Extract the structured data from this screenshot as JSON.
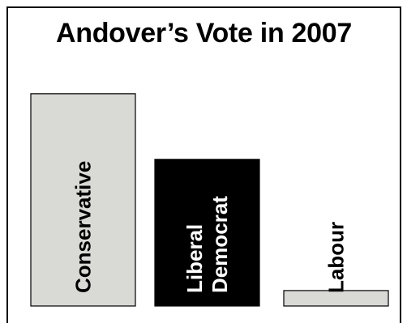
{
  "chart_data": {
    "type": "bar",
    "title": "Andover’s Vote in 2007",
    "categories": [
      "Conservative",
      "Liberal Democrat",
      "Labour"
    ],
    "label_lines": [
      [
        "Conservative"
      ],
      [
        "Liberal",
        "Democrat"
      ],
      [
        "Labour"
      ]
    ],
    "values": [
      55,
      38,
      4
    ],
    "colors": [
      "#d9d9d6",
      "#000000",
      "#d9d9d6"
    ],
    "label_colors": [
      "#000000",
      "#ffffff",
      "#000000"
    ],
    "ylim": [
      0,
      60
    ],
    "xlabel": "",
    "ylabel": "",
    "grid": false,
    "legend": "none"
  }
}
